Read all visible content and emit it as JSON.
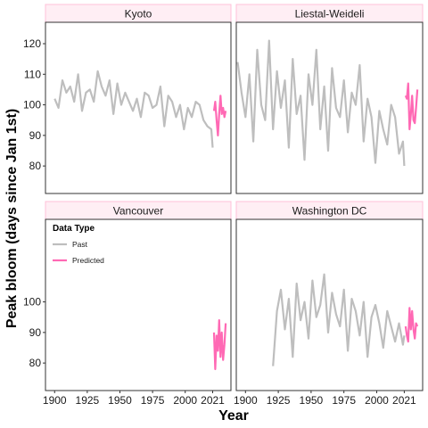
{
  "colors": {
    "past": "#bebebe",
    "predicted": "#ff69b4",
    "strip_fill": "#ffeef4",
    "strip_border": "#ffc0d8",
    "panel_border": "#333333"
  },
  "chart_data": {
    "type": "line",
    "layout": "facet-2x2",
    "xlabel": "Year",
    "ylabel": "Peak bloom (days since Jan 1st)",
    "xlim": [
      1893,
      2035
    ],
    "ylim": [
      71,
      127
    ],
    "x_ticks": [
      1900,
      1925,
      1950,
      1975,
      2000,
      2021
    ],
    "y_ticks": [
      80,
      90,
      100,
      110,
      120
    ],
    "y_tick_labels_left_column": {
      "top": [
        "80",
        "90",
        "100",
        "110",
        "120"
      ],
      "bottom": [
        "80",
        "90",
        "100"
      ]
    },
    "legend": {
      "title": "Data Type",
      "entries": [
        "Past",
        "Predicted"
      ],
      "placement": "inside Vancouver panel, top-left"
    },
    "panels": [
      {
        "name": "Kyoto",
        "series": [
          {
            "name": "Past",
            "x": [
              1900,
              1903,
              1906,
              1909,
              1912,
              1915,
              1918,
              1921,
              1924,
              1927,
              1930,
              1933,
              1936,
              1939,
              1942,
              1945,
              1948,
              1951,
              1954,
              1957,
              1960,
              1963,
              1966,
              1969,
              1972,
              1975,
              1978,
              1981,
              1984,
              1987,
              1990,
              1993,
              1996,
              1999,
              2002,
              2005,
              2008,
              2011,
              2014,
              2017,
              2020,
              2021
            ],
            "y": [
              102,
              99,
              108,
              104,
              106,
              101,
              110,
              98,
              104,
              105,
              101,
              111,
              106,
              103,
              108,
              97,
              107,
              100,
              104,
              101,
              98,
              102,
              96,
              104,
              103,
              99,
              100,
              106,
              93,
              103,
              101,
              96,
              100,
              92,
              99,
              96,
              101,
              100,
              95,
              93,
              92,
              86
            ]
          },
          {
            "name": "Predicted",
            "x": [
              2022,
              2023,
              2024,
              2025,
              2026,
              2027,
              2028,
              2029,
              2030,
              2031
            ],
            "y": [
              98,
              101,
              95,
              90,
              97,
              103,
              97,
              99,
              96,
              98
            ]
          }
        ]
      },
      {
        "name": "Liestal-Weideli",
        "series": [
          {
            "name": "Past",
            "x": [
              1894,
              1897,
              1900,
              1903,
              1906,
              1909,
              1912,
              1915,
              1918,
              1921,
              1924,
              1927,
              1930,
              1933,
              1936,
              1939,
              1942,
              1945,
              1948,
              1951,
              1954,
              1957,
              1960,
              1963,
              1966,
              1969,
              1972,
              1975,
              1978,
              1981,
              1984,
              1987,
              1990,
              1993,
              1996,
              1999,
              2002,
              2005,
              2008,
              2011,
              2014,
              2017,
              2020,
              2021
            ],
            "y": [
              114,
              104,
              96,
              110,
              88,
              118,
              100,
              95,
              121,
              92,
              111,
              99,
              108,
              86,
              115,
              97,
              103,
              82,
              110,
              100,
              118,
              92,
              106,
              85,
              112,
              99,
              96,
              108,
              91,
              104,
              100,
              113,
              88,
              102,
              96,
              81,
              98,
              92,
              87,
              100,
              96,
              84,
              88,
              80
            ]
          },
          {
            "name": "Predicted",
            "x": [
              2022,
              2023,
              2024,
              2025,
              2026,
              2027,
              2028,
              2029,
              2030,
              2031
            ],
            "y": [
              103,
              102,
              107,
              92,
              97,
              103,
              95,
              94,
              99,
              105
            ]
          }
        ]
      },
      {
        "name": "Vancouver",
        "series": [
          {
            "name": "Predicted",
            "x": [
              2022,
              2023,
              2024,
              2025,
              2026,
              2027,
              2028,
              2029,
              2030,
              2031
            ],
            "y": [
              90,
              78,
              89,
              84,
              94,
              82,
              90,
              81,
              86,
              93
            ]
          }
        ]
      },
      {
        "name": "Washington DC",
        "series": [
          {
            "name": "Past",
            "x": [
              1921,
              1924,
              1927,
              1930,
              1933,
              1936,
              1939,
              1942,
              1945,
              1948,
              1951,
              1954,
              1957,
              1960,
              1963,
              1966,
              1969,
              1972,
              1975,
              1978,
              1981,
              1984,
              1987,
              1990,
              1993,
              1996,
              1999,
              2002,
              2005,
              2008,
              2011,
              2014,
              2017,
              2020,
              2021
            ],
            "y": [
              79,
              97,
              104,
              91,
              101,
              82,
              106,
              94,
              100,
              88,
              107,
              95,
              99,
              109,
              90,
              103,
              96,
              92,
              104,
              84,
              101,
              97,
              89,
              100,
              82,
              95,
              99,
              93,
              85,
              97,
              92,
              87,
              93,
              86,
              89
            ]
          },
          {
            "name": "Predicted",
            "x": [
              2022,
              2023,
              2024,
              2025,
              2026,
              2027,
              2028,
              2029,
              2030,
              2031
            ],
            "y": [
              92,
              89,
              87,
              98,
              91,
              97,
              91,
              88,
              93,
              92
            ]
          }
        ]
      }
    ]
  }
}
